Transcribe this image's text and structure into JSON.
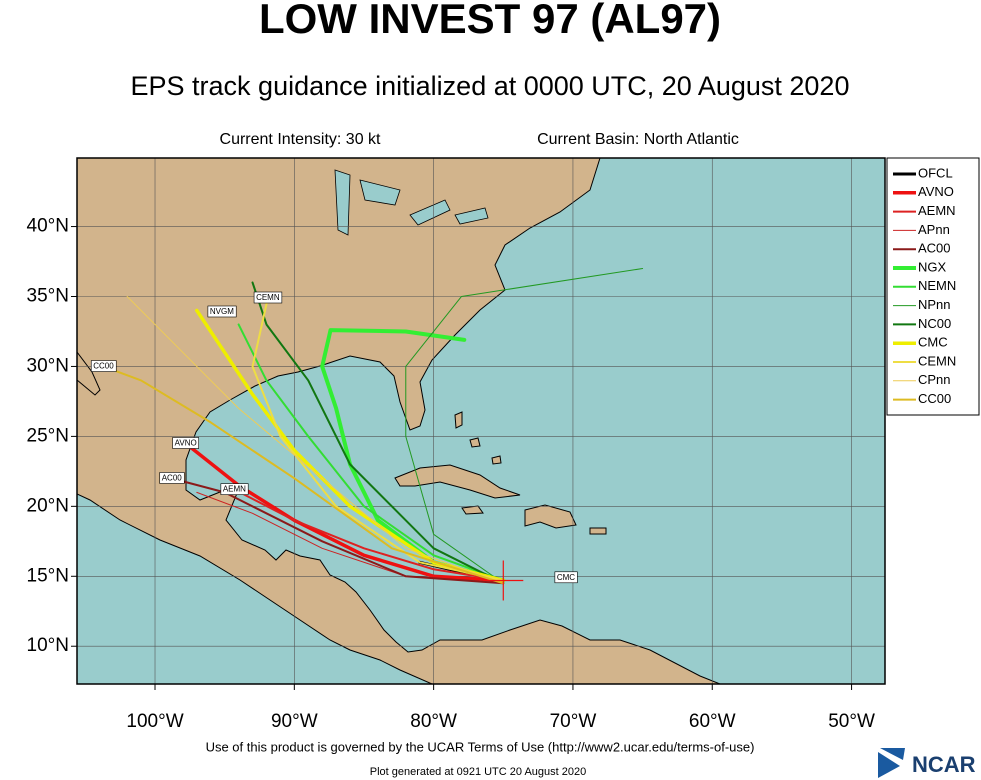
{
  "chart_data": {
    "type": "track-map",
    "title": "LOW INVEST 97 (AL97)",
    "subtitle": "EPS track guidance initialized at 0000 UTC, 20 August 2020",
    "intensity": "Current Intensity: 30 kt",
    "basin": "Current Basin: North Atlantic",
    "footer": "Use of this product is governed by the UCAR Terms of Use (http://www2.ucar.edu/terms-of-use)",
    "generated": "Plot generated at 0921 UTC  20 August 2020",
    "logo": "NCAR",
    "xlim": [
      -105.6,
      -47.6
    ],
    "ylim": [
      7.3,
      44.9
    ],
    "xticks": [
      {
        "value": -100,
        "label": "100°W"
      },
      {
        "value": -90,
        "label": "90°W"
      },
      {
        "value": -80,
        "label": "80°W"
      },
      {
        "value": -70,
        "label": "70°W"
      },
      {
        "value": -60,
        "label": "60°W"
      },
      {
        "value": -50,
        "label": "50°W"
      }
    ],
    "yticks": [
      {
        "value": 10,
        "label": "10°N"
      },
      {
        "value": 15,
        "label": "15°N"
      },
      {
        "value": 20,
        "label": "20°N"
      },
      {
        "value": 25,
        "label": "25°N"
      },
      {
        "value": 30,
        "label": "30°N"
      },
      {
        "value": 35,
        "label": "35°N"
      },
      {
        "value": 40,
        "label": "40°N"
      }
    ],
    "grid": true,
    "series": [
      {
        "name": "OFCL",
        "color": "#000000",
        "width": 3,
        "x": [
          -75,
          -78,
          -81
        ],
        "values": [
          14.7,
          15.3,
          16
        ]
      },
      {
        "name": "AVNO",
        "color": "#ee1111",
        "width": 3.5,
        "x": [
          -75,
          -80,
          -85,
          -90,
          -94,
          -97.8
        ],
        "values": [
          14.7,
          15,
          16.5,
          19,
          21.5,
          24.5
        ]
      },
      {
        "name": "AEMN",
        "color": "#dd2222",
        "width": 2,
        "x": [
          -75,
          -80,
          -85,
          -90,
          -94.3
        ],
        "values": [
          14.7,
          15.5,
          17,
          19,
          21.2
        ]
      },
      {
        "name": "APnn",
        "color": "#cc2222",
        "width": 1,
        "x": [
          -75,
          -82,
          -88,
          -93,
          -97
        ],
        "values": [
          14.5,
          15,
          17,
          19.5,
          21
        ]
      },
      {
        "name": "AC00",
        "color": "#8b1a1a",
        "width": 2,
        "x": [
          -75,
          -82,
          -88,
          -95,
          -98.8
        ],
        "values": [
          14.5,
          15,
          17.5,
          21,
          22
        ]
      },
      {
        "name": "NGX",
        "color": "#33ee33",
        "width": 4,
        "x": [
          -75,
          -80,
          -84,
          -86,
          -87,
          -88,
          -87.4,
          -82,
          -77.8
        ],
        "values": [
          14.7,
          16,
          19,
          23,
          27,
          30,
          32.6,
          32.5,
          31.9
        ]
      },
      {
        "name": "NEMN",
        "color": "#33dd33",
        "width": 2,
        "x": [
          -75,
          -80,
          -85,
          -89,
          -92,
          -94
        ],
        "values": [
          14.7,
          16.5,
          20,
          25,
          29,
          33
        ]
      },
      {
        "name": "NPnn",
        "color": "#229922",
        "width": 1,
        "x": [
          -75,
          -80,
          -82,
          -82,
          -78,
          -65
        ],
        "values": [
          14.5,
          18,
          25,
          30,
          35,
          37
        ]
      },
      {
        "name": "NC00",
        "color": "#117711",
        "width": 2,
        "x": [
          -75,
          -80,
          -86,
          -89,
          -92,
          -93
        ],
        "values": [
          14.5,
          17,
          23,
          29,
          33,
          36
        ]
      },
      {
        "name": "CMC",
        "color": "#eeee00",
        "width": 3.5,
        "x": [
          -75,
          -80,
          -86,
          -90,
          -93,
          -95,
          -97
        ],
        "values": [
          14.7,
          16,
          20,
          24,
          28,
          31,
          34
        ]
      },
      {
        "name": "CEMN",
        "color": "#eedd44",
        "width": 2,
        "x": [
          -75,
          -81,
          -87,
          -91,
          -93,
          -91.9
        ],
        "values": [
          14.7,
          16,
          20,
          25,
          30,
          34.9
        ]
      },
      {
        "name": "CPnn",
        "color": "#eecc55",
        "width": 1,
        "x": [
          -75,
          -82,
          -88,
          -94,
          -98,
          -102
        ],
        "values": [
          14.5,
          17,
          22,
          27,
          31,
          35
        ]
      },
      {
        "name": "CC00",
        "color": "#ddbb22",
        "width": 2,
        "x": [
          -75,
          -83,
          -90,
          -96,
          -101,
          -103.7
        ],
        "values": [
          14.5,
          17,
          22,
          26,
          29,
          30
        ]
      }
    ],
    "track_labels": [
      {
        "text": "CMC",
        "lon": -70.5,
        "lat": 14.9
      },
      {
        "text": "CEMN",
        "lon": -91.9,
        "lat": 34.9
      },
      {
        "text": "NVGM",
        "lon": -95.2,
        "lat": 33.9
      },
      {
        "text": "CC00",
        "lon": -103.7,
        "lat": 30
      },
      {
        "text": "AVNO",
        "lon": -97.8,
        "lat": 24.5
      },
      {
        "text": "AC00",
        "lon": -98.8,
        "lat": 22
      },
      {
        "text": "AEMN",
        "lon": -94.3,
        "lat": 21.2
      }
    ],
    "origin": {
      "lon": -75,
      "lat": 14.7
    }
  }
}
